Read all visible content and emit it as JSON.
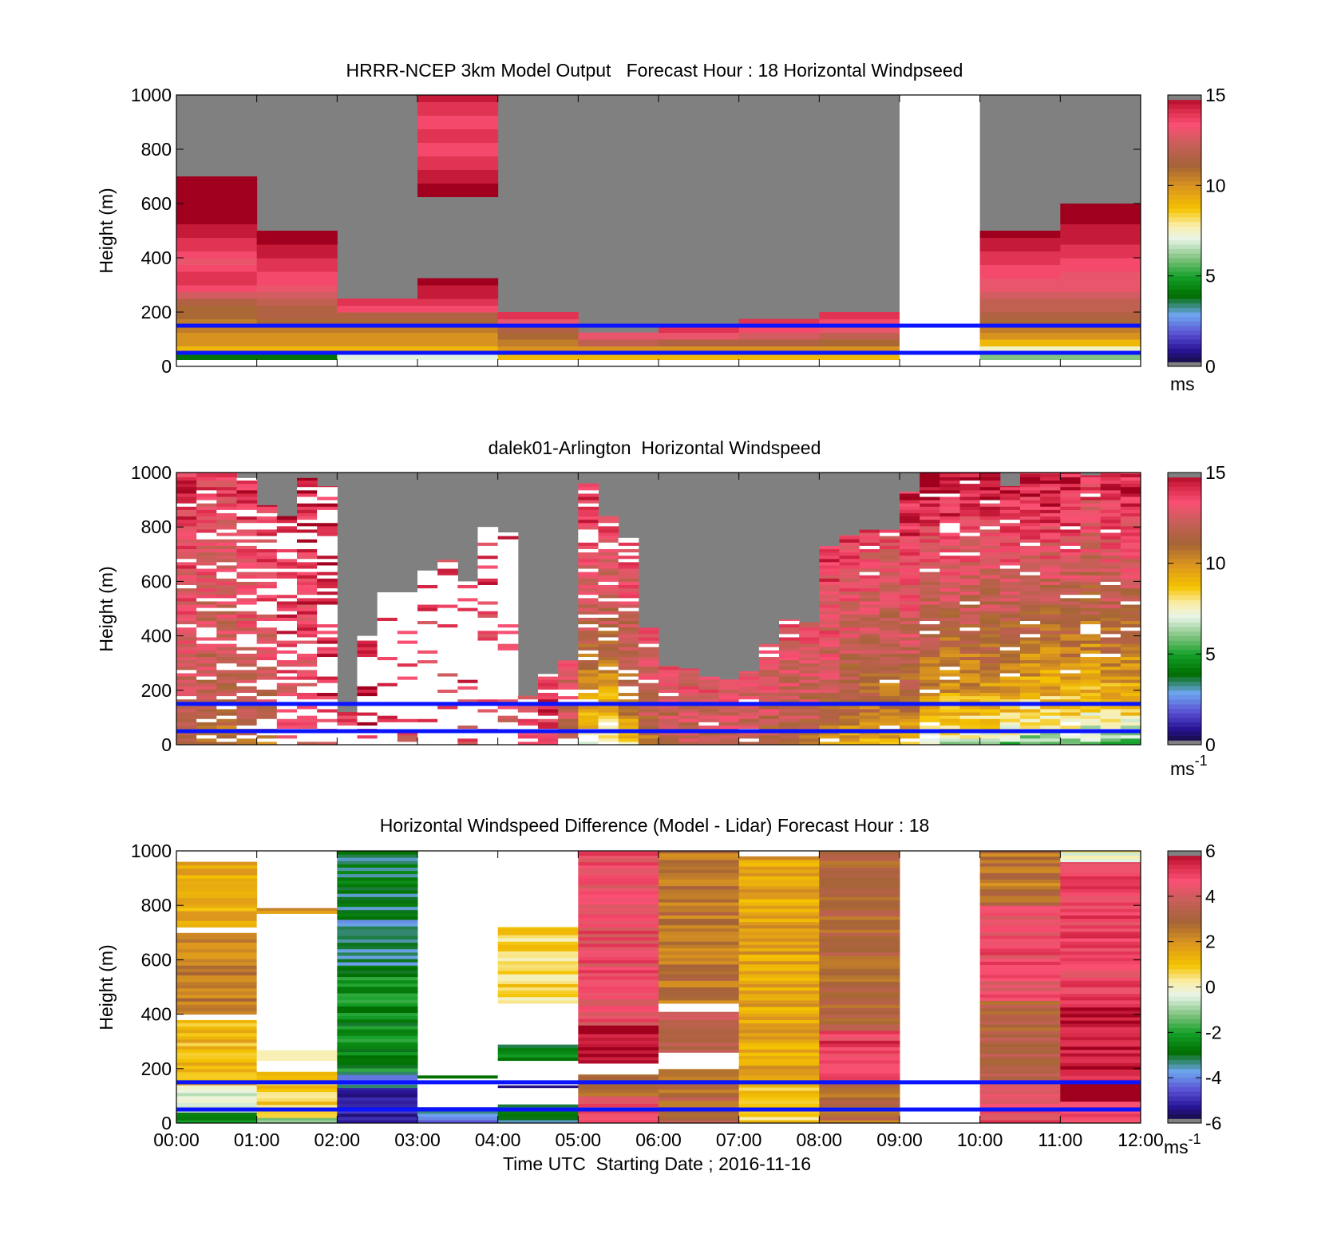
{
  "chart_data": [
    {
      "type": "heatmap",
      "title": "HRRR-NCEP 3km Model Output   Forecast Hour : 18 Horizontal Windpseed",
      "ylabel": "Height (m)",
      "ylim": [
        0,
        1000
      ],
      "yticks": [
        "0",
        "200",
        "400",
        "600",
        "800",
        "1000"
      ],
      "x_hours": [
        0,
        12
      ],
      "colorbar": {
        "min": 0,
        "max": 15,
        "ticks": [
          "0",
          "5",
          "10",
          "15"
        ],
        "unit": "ms",
        "unit_sup": "",
        "scale": "speed"
      },
      "reference_lines_m": [
        50,
        150
      ],
      "cell_height_m": 25,
      "columns": [
        {
          "start_h": 0,
          "top_m": 700,
          "values": [
            4,
            9,
            10,
            10,
            10.5,
            10.5,
            11,
            11,
            11.5,
            12.5,
            13.5,
            14,
            14,
            13.5,
            13,
            13.5,
            14,
            14,
            14.5,
            14.5,
            15,
            15,
            15,
            15,
            15,
            15,
            15,
            15
          ]
        },
        {
          "start_h": 1,
          "top_m": 500,
          "values": [
            4,
            9,
            10,
            10,
            10.5,
            11,
            11.5,
            11.5,
            12,
            12.5,
            13,
            13.5,
            13.5,
            14,
            14,
            14.5,
            14.5,
            15,
            15,
            15
          ]
        },
        {
          "start_h": 2,
          "top_m": 250,
          "values": [
            7,
            9,
            10,
            10,
            10.5,
            11,
            11.5,
            13.5,
            14,
            14.5
          ]
        },
        {
          "start_h": 3,
          "top_m": 1000,
          "values": [
            7,
            9,
            10,
            10,
            10.5,
            11,
            11.5,
            13.5,
            14,
            14.5,
            14.5,
            15,
            null,
            null,
            null,
            null,
            null,
            null,
            null,
            null,
            null,
            null,
            null,
            null,
            15,
            15,
            14.5,
            14.5,
            14,
            14,
            13.5,
            13.5,
            14,
            14,
            13.5,
            13.5,
            14,
            14,
            14.5,
            14.5
          ]
        },
        {
          "start_h": 4,
          "top_m": 200,
          "values": [
            9,
            10,
            10.5,
            11,
            11.5,
            13,
            14,
            14
          ]
        },
        {
          "start_h": 5,
          "top_m": 125,
          "values": [
            9,
            10,
            12,
            13,
            14
          ]
        },
        {
          "start_h": 6,
          "top_m": 150,
          "values": [
            9,
            10,
            11.5,
            13,
            14,
            14
          ]
        },
        {
          "start_h": 7,
          "top_m": 175,
          "values": [
            9,
            10,
            11.5,
            12.5,
            13.5,
            14,
            14
          ]
        },
        {
          "start_h": 8,
          "top_m": 200,
          "values": [
            9,
            10,
            11,
            12,
            13,
            13.5,
            14,
            14.5
          ]
        },
        {
          "start_h": 9,
          "top_m": 0,
          "values": [],
          "missing": true
        },
        {
          "start_h": 10,
          "top_m": 500,
          "values": [
            6,
            7.5,
            9,
            10,
            10.5,
            11,
            11.5,
            12,
            12,
            12.5,
            13,
            13,
            13.5,
            13.5,
            14,
            14,
            14.5,
            14.5,
            15,
            15
          ]
        },
        {
          "start_h": 11,
          "top_m": 600,
          "values": [
            6,
            7.5,
            9,
            10,
            10.5,
            11,
            11.5,
            12,
            12,
            12.5,
            13,
            13,
            13,
            13.5,
            13.5,
            14,
            14,
            14.5,
            14.5,
            14.5,
            15,
            15,
            15,
            15
          ]
        }
      ]
    },
    {
      "type": "heatmap",
      "title": "dalek01-Arlington  Horizontal Windspeed",
      "ylabel": "Height (m)",
      "ylim": [
        0,
        1000
      ],
      "yticks": [
        "0",
        "200",
        "400",
        "600",
        "800",
        "1000"
      ],
      "x_hours": [
        0,
        12
      ],
      "colorbar": {
        "min": 0,
        "max": 15,
        "ticks": [
          "0",
          "5",
          "10",
          "15"
        ],
        "unit": "ms",
        "unit_sup": "-1",
        "scale": "speed"
      },
      "reference_lines_m": [
        50,
        150
      ],
      "cell_height_m": 12,
      "profiles": [
        {
          "t_h": 0.0,
          "top_m": 1000,
          "base": 10.5,
          "slope": 3.5,
          "gaps": 0.1
        },
        {
          "t_h": 0.25,
          "top_m": 1000,
          "base": 10.5,
          "slope": 3.0,
          "gaps": 0.15
        },
        {
          "t_h": 0.5,
          "top_m": 1000,
          "base": 10.0,
          "slope": 3.5,
          "gaps": 0.2
        },
        {
          "t_h": 0.75,
          "top_m": 980,
          "base": 10.5,
          "slope": 3.5,
          "gaps": 0.25
        },
        {
          "t_h": 1.0,
          "top_m": 880,
          "base": 11.0,
          "slope": 3.0,
          "gaps": 0.45
        },
        {
          "t_h": 1.25,
          "top_m": 840,
          "base": 12.0,
          "slope": 2.5,
          "gaps": 0.55
        },
        {
          "t_h": 1.5,
          "top_m": 980,
          "base": 12.0,
          "slope": 2.5,
          "gaps": 0.35
        },
        {
          "t_h": 1.75,
          "top_m": 950,
          "base": 13.5,
          "slope": 1.0,
          "gaps": 0.6
        },
        {
          "t_h": 2.0,
          "top_m": 120,
          "base": 14.0,
          "slope": 0.5,
          "gaps": 0.4
        },
        {
          "t_h": 2.25,
          "top_m": 400,
          "base": 14.0,
          "slope": 0.5,
          "gaps": 0.6
        },
        {
          "t_h": 2.5,
          "top_m": 560,
          "base": 13.5,
          "slope": 1.0,
          "gaps": 0.8
        },
        {
          "t_h": 2.75,
          "top_m": 560,
          "base": 13.0,
          "slope": 1.0,
          "gaps": 0.8
        },
        {
          "t_h": 3.0,
          "top_m": 640,
          "base": 13.0,
          "slope": 1.0,
          "gaps": 0.85
        },
        {
          "t_h": 3.25,
          "top_m": 680,
          "base": 12.5,
          "slope": 1.5,
          "gaps": 0.85
        },
        {
          "t_h": 3.5,
          "top_m": 600,
          "base": 13.0,
          "slope": 1.0,
          "gaps": 0.85
        },
        {
          "t_h": 3.75,
          "top_m": 800,
          "base": 13.0,
          "slope": 1.0,
          "gaps": 0.85
        },
        {
          "t_h": 4.0,
          "top_m": 780,
          "base": 12.5,
          "slope": 1.5,
          "gaps": 0.8
        },
        {
          "t_h": 4.25,
          "top_m": 180,
          "base": 13.0,
          "slope": 1.5,
          "gaps": 0.4
        },
        {
          "t_h": 4.5,
          "top_m": 260,
          "base": 13.5,
          "slope": 1.0,
          "gaps": 0.2
        },
        {
          "t_h": 4.75,
          "top_m": 310,
          "base": 11.0,
          "slope": 3.5,
          "gaps": 0.1
        },
        {
          "t_h": 5.0,
          "top_m": 960,
          "base": 7.0,
          "slope": 7.5,
          "gaps": 0.2
        },
        {
          "t_h": 5.25,
          "top_m": 840,
          "base": 6.0,
          "slope": 8.5,
          "gaps": 0.15
        },
        {
          "t_h": 5.5,
          "top_m": 760,
          "base": 8.0,
          "slope": 6.5,
          "gaps": 0.15
        },
        {
          "t_h": 5.75,
          "top_m": 430,
          "base": 10.5,
          "slope": 4.0,
          "gaps": 0.05
        },
        {
          "t_h": 6.0,
          "top_m": 290,
          "base": 11.0,
          "slope": 3.5,
          "gaps": 0.05
        },
        {
          "t_h": 6.25,
          "top_m": 280,
          "base": 11.5,
          "slope": 3.0,
          "gaps": 0.05
        },
        {
          "t_h": 6.5,
          "top_m": 250,
          "base": 11.5,
          "slope": 3.0,
          "gaps": 0.05
        },
        {
          "t_h": 6.75,
          "top_m": 240,
          "base": 11.5,
          "slope": 3.0,
          "gaps": 0.05
        },
        {
          "t_h": 7.0,
          "top_m": 270,
          "base": 11.5,
          "slope": 3.0,
          "gaps": 0.05
        },
        {
          "t_h": 7.25,
          "top_m": 370,
          "base": 11.0,
          "slope": 3.5,
          "gaps": 0.05
        },
        {
          "t_h": 7.5,
          "top_m": 460,
          "base": 10.5,
          "slope": 4.0,
          "gaps": 0.05
        },
        {
          "t_h": 7.75,
          "top_m": 450,
          "base": 10.5,
          "slope": 4.0,
          "gaps": 0.05
        },
        {
          "t_h": 8.0,
          "top_m": 730,
          "base": 10.0,
          "slope": 4.5,
          "gaps": 0.05
        },
        {
          "t_h": 8.25,
          "top_m": 770,
          "base": 9.0,
          "slope": 5.5,
          "gaps": 0.05
        },
        {
          "t_h": 8.5,
          "top_m": 790,
          "base": 9.0,
          "slope": 5.0,
          "gaps": 0.05
        },
        {
          "t_h": 8.75,
          "top_m": 790,
          "base": 8.5,
          "slope": 5.5,
          "gaps": 0.05
        },
        {
          "t_h": 9.0,
          "top_m": 930,
          "base": 8.5,
          "slope": 6.0,
          "gaps": 0.05
        },
        {
          "t_h": 9.25,
          "top_m": 1000,
          "base": 6.5,
          "slope": 8.0,
          "gaps": 0.05
        },
        {
          "t_h": 9.5,
          "top_m": 1000,
          "base": 6.0,
          "slope": 8.5,
          "gaps": 0.05
        },
        {
          "t_h": 9.75,
          "top_m": 1000,
          "base": 6.0,
          "slope": 8.5,
          "gaps": 0.05
        },
        {
          "t_h": 10.0,
          "top_m": 1000,
          "base": 6.0,
          "slope": 8.5,
          "gaps": 0.05
        },
        {
          "t_h": 10.25,
          "top_m": 950,
          "base": 5.5,
          "slope": 9.0,
          "gaps": 0.05
        },
        {
          "t_h": 10.5,
          "top_m": 1000,
          "base": 5.0,
          "slope": 9.5,
          "gaps": 0.05
        },
        {
          "t_h": 10.75,
          "top_m": 1000,
          "base": 5.0,
          "slope": 9.5,
          "gaps": 0.05
        },
        {
          "t_h": 11.0,
          "top_m": 1000,
          "base": 5.0,
          "slope": 9.5,
          "gaps": 0.05
        },
        {
          "t_h": 11.25,
          "top_m": 990,
          "base": 5.0,
          "slope": 9.0,
          "gaps": 0.05
        },
        {
          "t_h": 11.5,
          "top_m": 1000,
          "base": 5.0,
          "slope": 9.5,
          "gaps": 0.05
        },
        {
          "t_h": 11.75,
          "top_m": 1000,
          "base": 5.0,
          "slope": 9.5,
          "gaps": 0.05
        }
      ]
    },
    {
      "type": "heatmap",
      "title": "Horizontal Windspeed Difference (Model - Lidar) Forecast Hour : 18",
      "ylabel": "Height (m)",
      "xlabel": "Time UTC  Starting Date ; 2016-11-16",
      "ylim": [
        0,
        1000
      ],
      "yticks": [
        "0",
        "200",
        "400",
        "600",
        "800",
        "1000"
      ],
      "xticks": [
        "00:00",
        "01:00",
        "02:00",
        "03:00",
        "04:00",
        "05:00",
        "06:00",
        "07:00",
        "08:00",
        "09:00",
        "10:00",
        "11:00",
        "12:00"
      ],
      "x_hours": [
        0,
        12
      ],
      "colorbar": {
        "min": -6,
        "max": 6,
        "ticks": [
          "-6",
          "-4",
          "-2",
          "0",
          "2",
          "4",
          "6"
        ],
        "unit": "ms",
        "unit_sup": "-1",
        "scale": "diff"
      },
      "reference_lines_m": [
        50,
        150
      ],
      "cell_height_m": 12,
      "columns": [
        {
          "start_h": 0,
          "segments": [
            {
              "from": 0,
              "to": 40,
              "v": -2.5
            },
            {
              "from": 40,
              "to": 140,
              "v": -0.5
            },
            {
              "from": 140,
              "to": 380,
              "v": 1.2
            },
            {
              "from": 380,
              "to": 400,
              "v": null
            },
            {
              "from": 400,
              "to": 700,
              "v": 2.4
            },
            {
              "from": 700,
              "to": 720,
              "v": null
            },
            {
              "from": 720,
              "to": 960,
              "v": 1.4
            }
          ]
        },
        {
          "start_h": 1,
          "segments": [
            {
              "from": 0,
              "to": 20,
              "v": -0.8
            },
            {
              "from": 20,
              "to": 190,
              "v": 0.8
            },
            {
              "from": 190,
              "to": 230,
              "v": null
            },
            {
              "from": 230,
              "to": 270,
              "v": 0.6
            },
            {
              "from": 270,
              "to": 770,
              "v": null
            },
            {
              "from": 770,
              "to": 790,
              "v": 1.8
            }
          ]
        },
        {
          "start_h": 2,
          "segments": [
            {
              "from": 0,
              "to": 130,
              "v": -5.0
            },
            {
              "from": 130,
              "to": 190,
              "v": -3.8
            },
            {
              "from": 190,
              "to": 580,
              "v": -2.4
            },
            {
              "from": 580,
              "to": 760,
              "v": -3.4
            },
            {
              "from": 760,
              "to": 1000,
              "v": -3.0
            }
          ]
        },
        {
          "start_h": 3,
          "segments": [
            {
              "from": 0,
              "to": 60,
              "v": -3.8
            },
            {
              "from": 60,
              "to": 165,
              "v": null
            },
            {
              "from": 165,
              "to": 175,
              "v": -2.8
            }
          ]
        },
        {
          "start_h": 4,
          "segments": [
            {
              "from": 0,
              "to": 70,
              "v": -3.0
            },
            {
              "from": 70,
              "to": 130,
              "v": null
            },
            {
              "from": 130,
              "to": 140,
              "v": -6.0
            },
            {
              "from": 140,
              "to": 230,
              "v": null
            },
            {
              "from": 230,
              "to": 290,
              "v": -2.6
            },
            {
              "from": 290,
              "to": 440,
              "v": null
            },
            {
              "from": 440,
              "to": 720,
              "v": 0.6
            }
          ]
        },
        {
          "start_h": 5,
          "segments": [
            {
              "from": 0,
              "to": 100,
              "v": 4.6
            },
            {
              "from": 100,
              "to": 180,
              "v": 2.8
            },
            {
              "from": 180,
              "to": 220,
              "v": null
            },
            {
              "from": 220,
              "to": 360,
              "v": 6.0
            },
            {
              "from": 360,
              "to": 1000,
              "v": 4.6
            }
          ]
        },
        {
          "start_h": 6,
          "segments": [
            {
              "from": 0,
              "to": 100,
              "v": 3.0
            },
            {
              "from": 100,
              "to": 200,
              "v": 2.6
            },
            {
              "from": 200,
              "to": 260,
              "v": null
            },
            {
              "from": 260,
              "to": 410,
              "v": 3.6
            },
            {
              "from": 410,
              "to": 440,
              "v": null
            },
            {
              "from": 440,
              "to": 1000,
              "v": 2.6
            }
          ]
        },
        {
          "start_h": 7,
          "segments": [
            {
              "from": 0,
              "to": 140,
              "v": 0.8
            },
            {
              "from": 140,
              "to": 980,
              "v": 1.6
            }
          ]
        },
        {
          "start_h": 8,
          "segments": [
            {
              "from": 0,
              "to": 160,
              "v": 2.8
            },
            {
              "from": 160,
              "to": 340,
              "v": 5.0
            },
            {
              "from": 340,
              "to": 1000,
              "v": 3.0
            }
          ]
        },
        {
          "start_h": 9,
          "segments": []
        },
        {
          "start_h": 10,
          "segments": [
            {
              "from": 0,
              "to": 160,
              "v": 4.6
            },
            {
              "from": 160,
              "to": 450,
              "v": 3.2
            },
            {
              "from": 450,
              "to": 800,
              "v": 4.6
            },
            {
              "from": 800,
              "to": 1000,
              "v": 2.6
            }
          ]
        },
        {
          "start_h": 11,
          "segments": [
            {
              "from": 0,
              "to": 80,
              "v": 5.2
            },
            {
              "from": 80,
              "to": 150,
              "v": 6.5
            },
            {
              "from": 150,
              "to": 440,
              "v": 5.6
            },
            {
              "from": 440,
              "to": 960,
              "v": 4.8
            },
            {
              "from": 960,
              "to": 1000,
              "v": 0.0
            }
          ]
        }
      ]
    }
  ]
}
